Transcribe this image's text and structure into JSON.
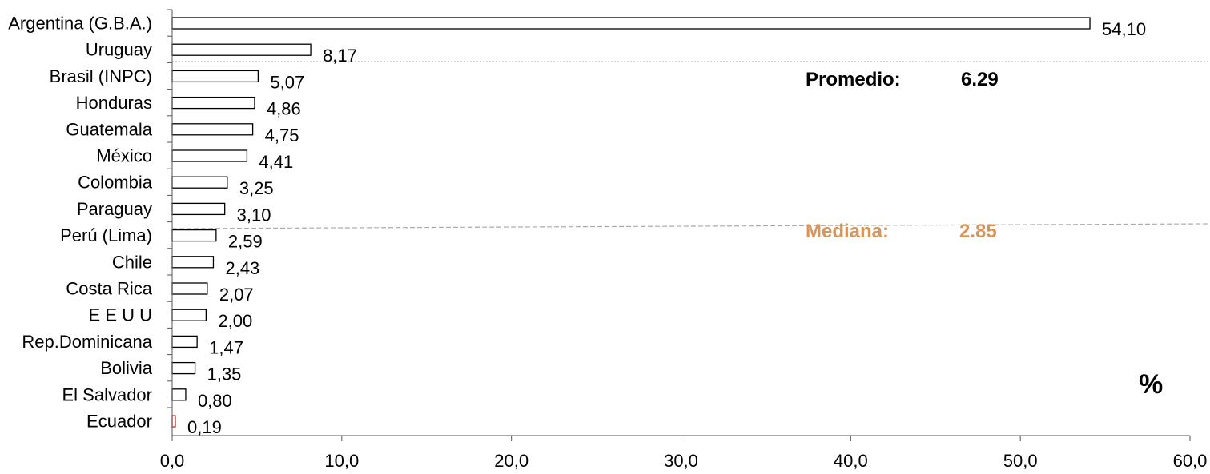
{
  "chart_data": {
    "type": "bar",
    "orientation": "horizontal",
    "categories": [
      "Argentina (G.B.A.)",
      "Uruguay",
      "Brasil (INPC)",
      "Honduras",
      "Guatemala",
      "México",
      "Colombia",
      "Paraguay",
      "Perú (Lima)",
      "Chile",
      "Costa Rica",
      "E E U U",
      "Rep.Dominicana",
      "Bolivia",
      "El Salvador",
      "Ecuador"
    ],
    "values": [
      54.1,
      8.17,
      5.07,
      4.86,
      4.75,
      4.41,
      3.25,
      3.1,
      2.59,
      2.43,
      2.07,
      2.0,
      1.47,
      1.35,
      0.8,
      0.19
    ],
    "value_labels": [
      "54,10",
      "8,17",
      "5,07",
      "4,86",
      "4,75",
      "4,41",
      "3,25",
      "3,10",
      "2,59",
      "2,43",
      "2,07",
      "2,00",
      "1,47",
      "1,35",
      "0,80",
      "0,19"
    ],
    "xlim": [
      0,
      60
    ],
    "xticks": [
      0,
      10,
      20,
      30,
      40,
      50,
      60
    ],
    "xtick_labels": [
      "0,0",
      "10,0",
      "20,0",
      "30,0",
      "40,0",
      "50,0",
      "60,0"
    ],
    "grid": false,
    "highlight_category": "Ecuador",
    "colors": {
      "bar_fill": "#ffffff",
      "bar_stroke": "#000000",
      "highlight_stroke": "#e02020",
      "median_color": "#d8955a"
    },
    "annotations": {
      "promedio_label": "Promedio:",
      "promedio_value": "6.29",
      "mediana_label": "Mediana:",
      "mediana_value": "2.85",
      "unit": "%"
    }
  }
}
